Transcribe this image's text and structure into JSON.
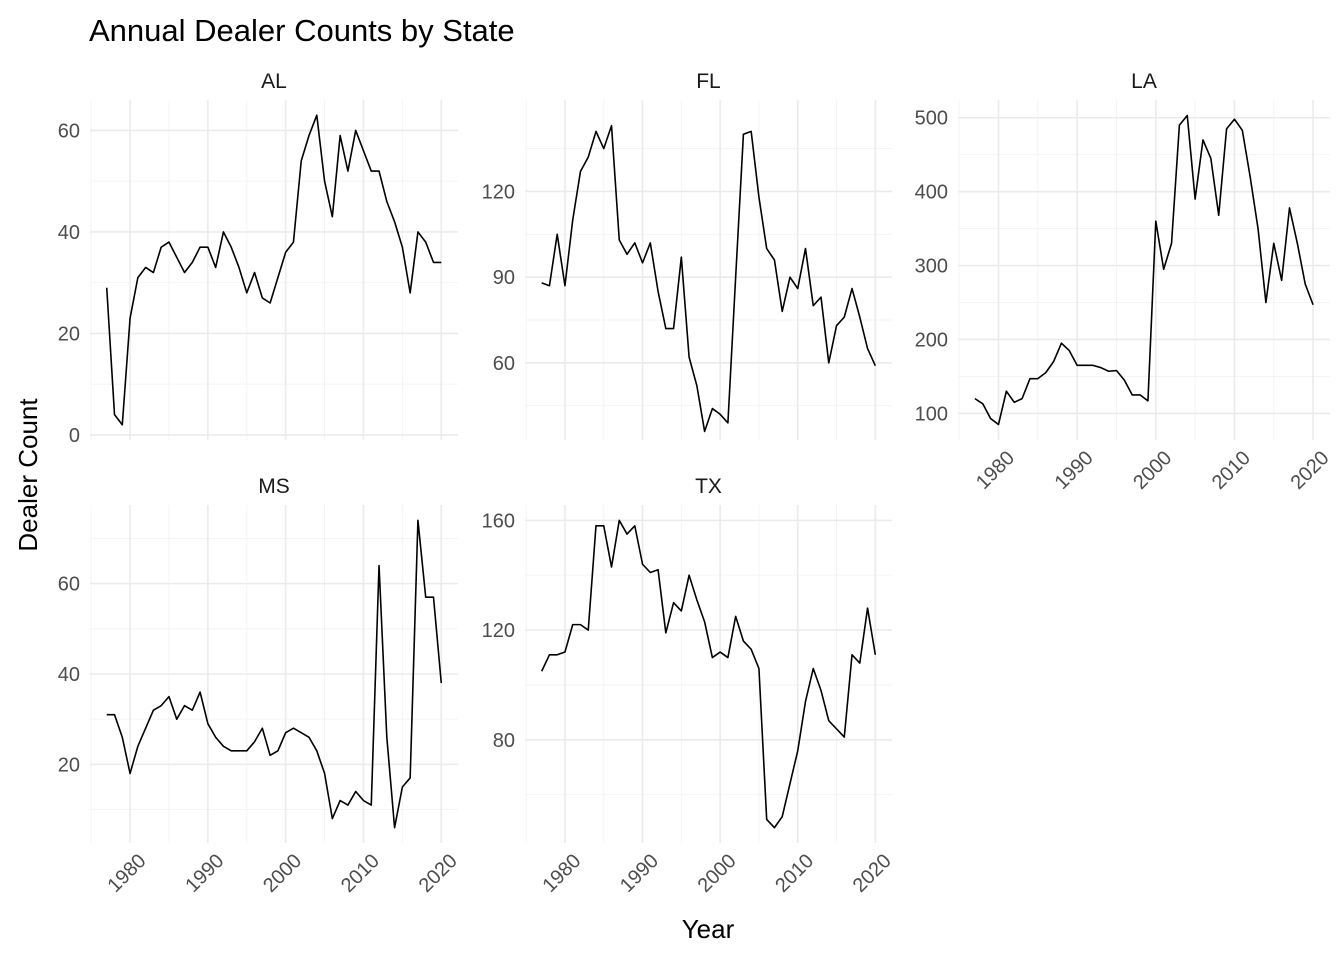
{
  "chart_data": {
    "type": "line",
    "title": "Annual Dealer Counts by State",
    "x_label": "Year",
    "y_label": "Dealer Count",
    "color": "#000000",
    "grid": true,
    "x": [
      1977,
      1978,
      1979,
      1980,
      1981,
      1982,
      1983,
      1984,
      1985,
      1986,
      1987,
      1988,
      1989,
      1990,
      1991,
      1992,
      1993,
      1994,
      1995,
      1996,
      1997,
      1998,
      1999,
      2000,
      2001,
      2002,
      2003,
      2004,
      2005,
      2006,
      2007,
      2008,
      2009,
      2010,
      2011,
      2012,
      2013,
      2014,
      2015,
      2016,
      2017,
      2018,
      2019,
      2020
    ],
    "xlim": [
      1974.85,
      2022.15
    ],
    "xticks": [
      1980,
      1990,
      2000,
      2010,
      2020
    ],
    "facets": [
      {
        "title": "AL",
        "ylim": [
          -1,
          66
        ],
        "yticks": [
          0,
          20,
          40,
          60
        ],
        "values": [
          29,
          4,
          2,
          23,
          31,
          33,
          32,
          37,
          38,
          35,
          32,
          34,
          37,
          37,
          33,
          40,
          37,
          33,
          28,
          32,
          27,
          26,
          31,
          36,
          38,
          54,
          59,
          63,
          50,
          43,
          59,
          52,
          60,
          56,
          52,
          52,
          46,
          42,
          37,
          28,
          40,
          38,
          34,
          34
        ]
      },
      {
        "title": "FL",
        "ylim": [
          33,
          152
        ],
        "yticks": [
          60,
          90,
          120
        ],
        "values": [
          88,
          87,
          105,
          87,
          110,
          127,
          132,
          141,
          135,
          143,
          103,
          98,
          102,
          95,
          102,
          85,
          72,
          72,
          97,
          62,
          52,
          36,
          44,
          42,
          39,
          90,
          140,
          141,
          118,
          100,
          96,
          78,
          90,
          86,
          100,
          80,
          83,
          60,
          73,
          76,
          86,
          76,
          65,
          59
        ]
      },
      {
        "title": "LA",
        "ylim": [
          64,
          524
        ],
        "yticks": [
          100,
          200,
          300,
          400,
          500
        ],
        "values": [
          120,
          113,
          93,
          85,
          130,
          115,
          120,
          147,
          147,
          155,
          170,
          195,
          185,
          165,
          165,
          165,
          162,
          157,
          158,
          145,
          125,
          125,
          117,
          360,
          295,
          330,
          490,
          503,
          390,
          470,
          445,
          368,
          485,
          498,
          483,
          420,
          350,
          250,
          330,
          280,
          378,
          330,
          275,
          247
        ]
      },
      {
        "title": "MS",
        "ylim": [
          2.6,
          77.4
        ],
        "yticks": [
          20,
          40,
          60
        ],
        "values": [
          31,
          31,
          26,
          18,
          24,
          28,
          32,
          33,
          35,
          30,
          33,
          32,
          36,
          29,
          26,
          24,
          23,
          23,
          23,
          25,
          28,
          22,
          23,
          27,
          28,
          27,
          26,
          23,
          18,
          8,
          12,
          11,
          14,
          12,
          11,
          64,
          26,
          6,
          15,
          17,
          74,
          57,
          57,
          38
        ]
      },
      {
        "title": "TX",
        "ylim": [
          42.4,
          165.6
        ],
        "yticks": [
          80,
          120,
          160
        ],
        "values": [
          105,
          111,
          111,
          112,
          122,
          122,
          120,
          158,
          158,
          143,
          160,
          155,
          158,
          144,
          141,
          142,
          119,
          130,
          127,
          140,
          131,
          123,
          110,
          112,
          110,
          125,
          116,
          113,
          106,
          51,
          48,
          52,
          64,
          76,
          94,
          106,
          98,
          87,
          84,
          81,
          111,
          108,
          128,
          111
        ]
      }
    ]
  }
}
